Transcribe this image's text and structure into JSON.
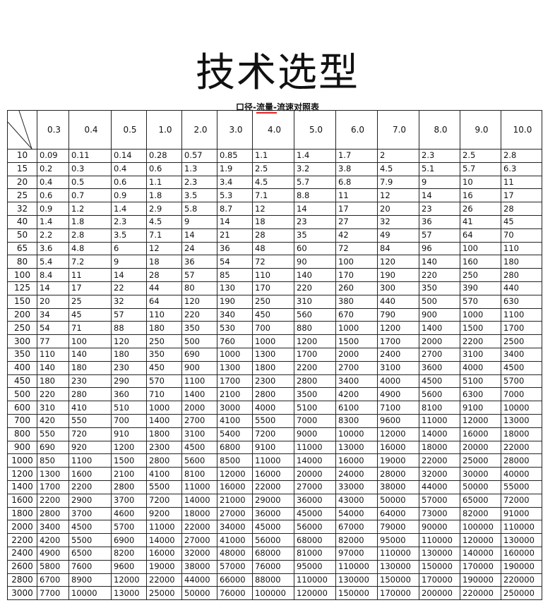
{
  "title": "技术选型",
  "subtitle_parts": [
    "口径-",
    "流量-",
    "流速对照表"
  ],
  "columns": [
    "0.3",
    "0.4",
    "0.5",
    "1.0",
    "2.0",
    "3.0",
    "4.0",
    "5.0",
    "6.0",
    "7.0",
    "8.0",
    "9.0",
    "10.0"
  ],
  "rows": [
    [
      "10",
      "0.09",
      "0.11",
      "0.14",
      "0.28",
      "0.57",
      "0.85",
      "1.1",
      "1.4",
      "1.7",
      "2",
      "2.3",
      "2.5",
      "2.8"
    ],
    [
      "15",
      "0.2",
      "0.3",
      "0.4",
      "0.6",
      "1.3",
      "1.9",
      "2.5",
      "3.2",
      "3.8",
      "4.5",
      "5.1",
      "5.7",
      "6.3"
    ],
    [
      "20",
      "0.4",
      "0.5",
      "0.6",
      "1.1",
      "2.3",
      "3.4",
      "4.5",
      "5.7",
      "6.8",
      "7.9",
      "9",
      "10",
      "11"
    ],
    [
      "25",
      "0.6",
      "0.7",
      "0.9",
      "1.8",
      "3.5",
      "5.3",
      "7.1",
      "8.8",
      "11",
      "12",
      "14",
      "16",
      "17"
    ],
    [
      "32",
      "0.9",
      "1.2",
      "1.4",
      "2.9",
      "5.8",
      "8.7",
      "12",
      "14",
      "17",
      "20",
      "23",
      "26",
      "28"
    ],
    [
      "40",
      "1.4",
      "1.8",
      "2.3",
      "4.5",
      "9",
      "14",
      "18",
      "23",
      "27",
      "32",
      "36",
      "41",
      "45"
    ],
    [
      "50",
      "2.2",
      "2.8",
      "3.5",
      "7.1",
      "14",
      "21",
      "28",
      "35",
      "42",
      "49",
      "57",
      "64",
      "70"
    ],
    [
      "65",
      "3.6",
      "4.8",
      "6",
      "12",
      "24",
      "36",
      "48",
      "60",
      "72",
      "84",
      "96",
      "100",
      "110"
    ],
    [
      "80",
      "5.4",
      "7.2",
      "9",
      "18",
      "36",
      "54",
      "72",
      "90",
      "100",
      "120",
      "140",
      "160",
      "180"
    ],
    [
      "100",
      "8.4",
      "11",
      "14",
      "28",
      "57",
      "85",
      "110",
      "140",
      "170",
      "190",
      "220",
      "250",
      "280"
    ],
    [
      "125",
      "14",
      "17",
      "22",
      "44",
      "80",
      "130",
      "170",
      "220",
      "260",
      "300",
      "350",
      "390",
      "440"
    ],
    [
      "150",
      "20",
      "25",
      "32",
      "64",
      "120",
      "190",
      "250",
      "310",
      "380",
      "440",
      "500",
      "570",
      "630"
    ],
    [
      "200",
      "34",
      "45",
      "57",
      "110",
      "220",
      "340",
      "450",
      "560",
      "670",
      "790",
      "900",
      "1000",
      "1100"
    ],
    [
      "250",
      "54",
      "71",
      "88",
      "180",
      "350",
      "530",
      "700",
      "880",
      "1000",
      "1200",
      "1400",
      "1500",
      "1700"
    ],
    [
      "300",
      "77",
      "100",
      "120",
      "250",
      "500",
      "760",
      "1000",
      "1200",
      "1500",
      "1700",
      "2000",
      "2200",
      "2500"
    ],
    [
      "350",
      "110",
      "140",
      "180",
      "350",
      "690",
      "1000",
      "1300",
      "1700",
      "2000",
      "2400",
      "2700",
      "3100",
      "3400"
    ],
    [
      "400",
      "140",
      "180",
      "230",
      "450",
      "900",
      "1300",
      "1800",
      "2200",
      "2700",
      "3100",
      "3600",
      "4000",
      "4500"
    ],
    [
      "450",
      "180",
      "230",
      "290",
      "570",
      "1100",
      "1700",
      "2300",
      "2800",
      "3400",
      "4000",
      "4500",
      "5100",
      "5700"
    ],
    [
      "500",
      "220",
      "280",
      "360",
      "710",
      "1400",
      "2100",
      "2800",
      "3500",
      "4200",
      "4900",
      "5600",
      "6300",
      "7000"
    ],
    [
      "600",
      "310",
      "410",
      "510",
      "1000",
      "2000",
      "3000",
      "4000",
      "5100",
      "6100",
      "7100",
      "8100",
      "9100",
      "10000"
    ],
    [
      "700",
      "420",
      "550",
      "700",
      "1400",
      "2700",
      "4100",
      "5500",
      "7000",
      "8300",
      "9600",
      "11000",
      "12000",
      "13000"
    ],
    [
      "800",
      "550",
      "720",
      "910",
      "1800",
      "3100",
      "5400",
      "7200",
      "9000",
      "10000",
      "12000",
      "14000",
      "16000",
      "18000"
    ],
    [
      "900",
      "690",
      "920",
      "1200",
      "2300",
      "4500",
      "6800",
      "9100",
      "11000",
      "13000",
      "16000",
      "18000",
      "20000",
      "22000"
    ],
    [
      "1000",
      "850",
      "1100",
      "1500",
      "2800",
      "5600",
      "8500",
      "11000",
      "14000",
      "16000",
      "19000",
      "22000",
      "25000",
      "28000"
    ],
    [
      "1200",
      "1300",
      "1600",
      "2100",
      "4100",
      "8100",
      "12000",
      "16000",
      "20000",
      "24000",
      "28000",
      "32000",
      "30000",
      "40000"
    ],
    [
      "1400",
      "1700",
      "2200",
      "2800",
      "5500",
      "11000",
      "16000",
      "22000",
      "27000",
      "33000",
      "38000",
      "44000",
      "50000",
      "55000"
    ],
    [
      "1600",
      "2200",
      "2900",
      "3700",
      "7200",
      "14000",
      "21000",
      "29000",
      "36000",
      "43000",
      "50000",
      "57000",
      "65000",
      "72000"
    ],
    [
      "1800",
      "2800",
      "3700",
      "4600",
      "9200",
      "18000",
      "27000",
      "36000",
      "45000",
      "54000",
      "64000",
      "73000",
      "82000",
      "91000"
    ],
    [
      "2000",
      "3400",
      "4500",
      "5700",
      "11000",
      "22000",
      "34000",
      "45000",
      "56000",
      "67000",
      "79000",
      "90000",
      "100000",
      "110000"
    ],
    [
      "2200",
      "4200",
      "5500",
      "6900",
      "14000",
      "27000",
      "41000",
      "56000",
      "68000",
      "82000",
      "95000",
      "110000",
      "120000",
      "130000"
    ],
    [
      "2400",
      "4900",
      "6500",
      "8200",
      "16000",
      "32000",
      "48000",
      "68000",
      "81000",
      "97000",
      "110000",
      "130000",
      "140000",
      "160000"
    ],
    [
      "2600",
      "5800",
      "7600",
      "9600",
      "19000",
      "38000",
      "57000",
      "76000",
      "95000",
      "110000",
      "130000",
      "150000",
      "170000",
      "190000"
    ],
    [
      "2800",
      "6700",
      "8900",
      "12000",
      "22000",
      "44000",
      "66000",
      "88000",
      "110000",
      "130000",
      "150000",
      "170000",
      "190000",
      "220000"
    ],
    [
      "3000",
      "7700",
      "10000",
      "13000",
      "25000",
      "50000",
      "76000",
      "100000",
      "120000",
      "150000",
      "170000",
      "200000",
      "220000",
      "250000"
    ]
  ]
}
